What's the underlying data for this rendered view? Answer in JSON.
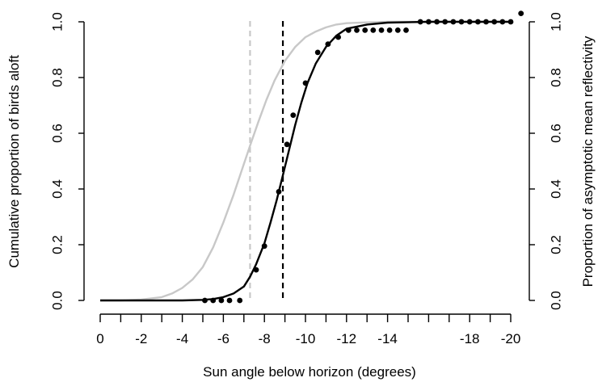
{
  "chart_data": {
    "type": "line",
    "title": "",
    "xlabel": "Sun angle below horizon (degrees)",
    "ylabel_left": "Cumulative proportion of birds aloft",
    "ylabel_right": "Proportion of asymptotic mean reflectivity",
    "xlim": [
      0,
      -20
    ],
    "ylim": [
      0,
      1
    ],
    "x_ticks": [
      0,
      -1,
      -2,
      -3,
      -4,
      -5,
      -6,
      -7,
      -8,
      -9,
      -10,
      -11,
      -12,
      -13,
      -14,
      -15,
      -16,
      -17,
      -18,
      -19,
      -20
    ],
    "x_tick_labels": [
      "0",
      "-2",
      "-4",
      "-6",
      "-8",
      "-10",
      "-12",
      "-14",
      "-18",
      "-20"
    ],
    "x_tick_label_values": [
      0,
      -2,
      -4,
      -6,
      -8,
      -10,
      -12,
      -14,
      -18,
      -20
    ],
    "y_ticks": [
      0,
      0.2,
      0.4,
      0.6,
      0.8,
      1
    ],
    "y_tick_labels": [
      "0.0",
      "0.2",
      "0.4",
      "0.6",
      "0.8",
      "1.0"
    ],
    "grid": false,
    "colors": {
      "black": "#000000",
      "grey": "#c8c8c8"
    },
    "series": [
      {
        "style": "points",
        "color": "#000000",
        "x": [
          -5.1,
          -5.5,
          -5.9,
          -6.3,
          -6.8,
          -7.6,
          -8.0,
          -8.7,
          -9.1,
          -9.4,
          -10.0,
          -10.6,
          -11.1,
          -11.6,
          -12.1,
          -12.5,
          -12.9,
          -13.3,
          -13.7,
          -14.1,
          -14.5,
          -14.9,
          -15.6,
          -16.0,
          -16.4,
          -16.8,
          -17.2,
          -17.6,
          -18.0,
          -18.4,
          -18.8,
          -19.2,
          -19.6,
          -20.0,
          -20.5
        ],
        "y": [
          0.0,
          0.0,
          0.0,
          0.0,
          0.0,
          0.11,
          0.195,
          0.39,
          0.56,
          0.665,
          0.78,
          0.89,
          0.92,
          0.945,
          0.97,
          0.97,
          0.97,
          0.97,
          0.97,
          0.97,
          0.97,
          0.97,
          1.0,
          1.0,
          1.0,
          1.0,
          1.0,
          1.0,
          1.0,
          1.0,
          1.0,
          1.0,
          1.0,
          1.0,
          1.03
        ]
      },
      {
        "style": "line",
        "color": "#000000",
        "x": [
          0,
          -1,
          -2,
          -3,
          -4,
          -5,
          -5.5,
          -6,
          -6.5,
          -7,
          -7.3,
          -7.6,
          -8,
          -8.3,
          -8.6,
          -8.9,
          -9.2,
          -9.5,
          -9.8,
          -10.1,
          -10.5,
          -11,
          -11.5,
          -12,
          -13,
          -14,
          -16,
          -18,
          -20
        ],
        "y": [
          0,
          0,
          0,
          0,
          0,
          0.002,
          0.005,
          0.012,
          0.025,
          0.05,
          0.085,
          0.13,
          0.205,
          0.28,
          0.36,
          0.45,
          0.54,
          0.63,
          0.71,
          0.78,
          0.85,
          0.91,
          0.95,
          0.975,
          0.99,
          0.997,
          1.0,
          1.0,
          1.0
        ]
      },
      {
        "style": "line",
        "color": "#c8c8c8",
        "x": [
          0,
          -1,
          -2,
          -3,
          -3.5,
          -4,
          -4.5,
          -5,
          -5.5,
          -6,
          -6.5,
          -7,
          -7.3,
          -7.7,
          -8.1,
          -8.5,
          -9,
          -9.5,
          -10,
          -10.5,
          -11,
          -11.5,
          -12,
          -13,
          -14,
          -16,
          -18,
          -20
        ],
        "y": [
          0,
          0,
          0.003,
          0.012,
          0.025,
          0.045,
          0.075,
          0.12,
          0.19,
          0.28,
          0.38,
          0.49,
          0.555,
          0.64,
          0.72,
          0.79,
          0.86,
          0.91,
          0.945,
          0.965,
          0.98,
          0.99,
          0.995,
          0.998,
          1.0,
          1.0,
          1.0,
          1.0
        ]
      }
    ],
    "vlines": [
      {
        "x": -7.3,
        "style": "dashed",
        "color": "#c8c8c8"
      },
      {
        "x": -8.9,
        "style": "dashed",
        "color": "#000000"
      }
    ]
  }
}
